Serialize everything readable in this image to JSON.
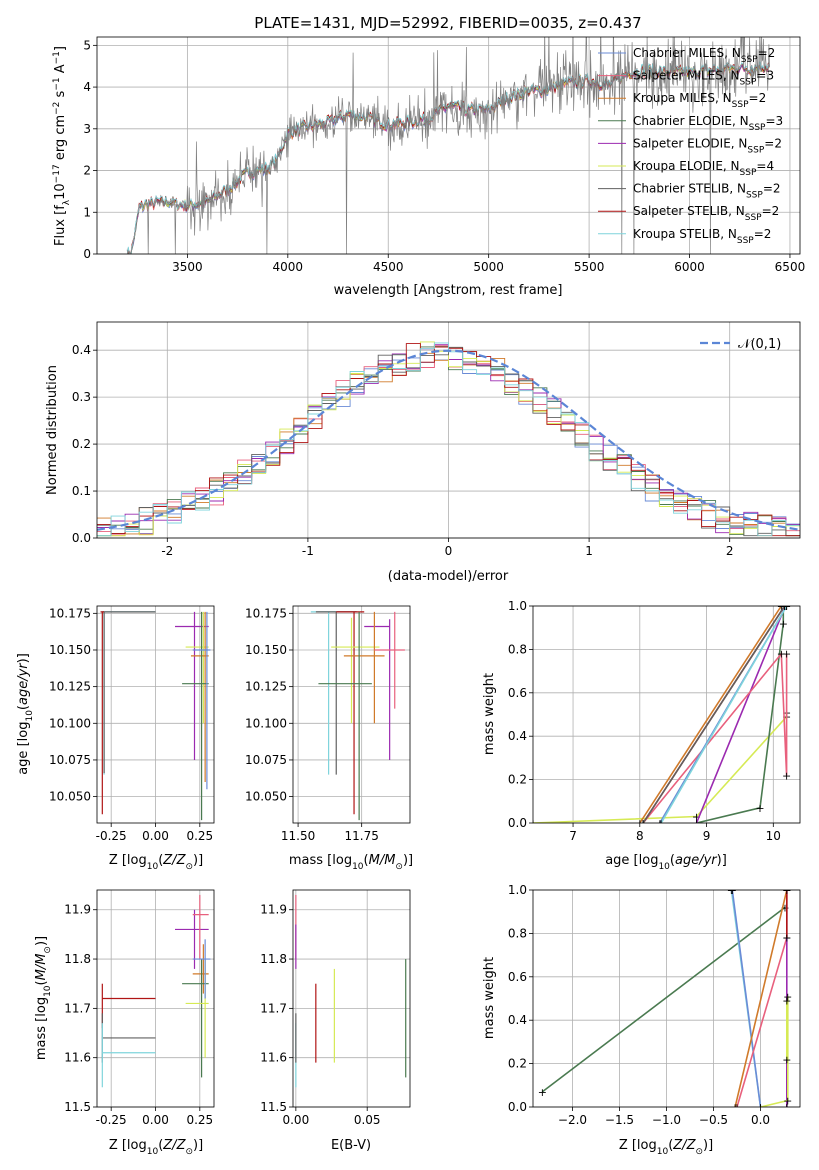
{
  "title": "PLATE=1431, MJD=52992, FIBERID=0035, z=0.437",
  "colors": {
    "chab_miles": "#6a8bd6",
    "salp_miles": "#e8607d",
    "krou_miles": "#d07a2a",
    "chab_elodie": "#4a7a50",
    "salp_elodie": "#9b2ab0",
    "krou_elodie": "#d6ea55",
    "chab_stelib": "#606060",
    "salp_stelib": "#b01515",
    "krou_stelib": "#7fd4dc",
    "grey": "#808080",
    "normal": "#5b86d6"
  },
  "chart_data": [
    {
      "id": "spectrum",
      "type": "line",
      "xlabel": "wavelength [Angstrom, rest frame]",
      "ylabel": "Flux [f$_\\lambda$10$^{-17}$ erg cm$^{-2}$ s$^{-1}$ A$^{-1}$]",
      "xlim": [
        3050,
        6550
      ],
      "ylim": [
        0,
        5.2
      ],
      "xticks": [
        3500,
        4000,
        4500,
        5000,
        5500,
        6000,
        6500
      ],
      "yticks": [
        0,
        1,
        2,
        3,
        4,
        5
      ],
      "legend_position": "top-right",
      "legend": [
        {
          "label": "Chabrier MILES, N",
          "sub": "SSP",
          "suffix": "=2",
          "color_key": "chab_miles"
        },
        {
          "label": "Salpeter MILES, N",
          "sub": "SSP",
          "suffix": "=3",
          "color_key": "salp_miles"
        },
        {
          "label": "Kroupa MILES, N",
          "sub": "SSP",
          "suffix": "=2",
          "color_key": "krou_miles"
        },
        {
          "label": "Chabrier ELODIE, N",
          "sub": "SSP",
          "suffix": "=3",
          "color_key": "chab_elodie"
        },
        {
          "label": "Salpeter ELODIE, N",
          "sub": "SSP",
          "suffix": "=2",
          "color_key": "salp_elodie"
        },
        {
          "label": "Kroupa ELODIE, N",
          "sub": "SSP",
          "suffix": "=4",
          "color_key": "krou_elodie"
        },
        {
          "label": "Chabrier STELIB, N",
          "sub": "SSP",
          "suffix": "=2",
          "color_key": "chab_stelib"
        },
        {
          "label": "Salpeter STELIB, N",
          "sub": "SSP",
          "suffix": "=2",
          "color_key": "salp_stelib"
        },
        {
          "label": "Kroupa STELIB, N",
          "sub": "SSP",
          "suffix": "=2",
          "color_key": "krou_stelib"
        }
      ],
      "continuum": {
        "x": [
          3220,
          3260,
          3300,
          3400,
          3500,
          3600,
          3700,
          3800,
          3900,
          3950,
          4000,
          4100,
          4200,
          4300,
          4400,
          4500,
          4600,
          4700,
          4800,
          4900,
          5000,
          5100,
          5200,
          5300,
          5400,
          5500,
          5600,
          5700,
          5800,
          5900,
          6000,
          6100,
          6200,
          6300,
          6400
        ],
        "y": [
          0,
          1.1,
          1.2,
          1.25,
          1.15,
          1.25,
          1.55,
          1.95,
          2.05,
          2.3,
          2.9,
          3.05,
          3.15,
          3.35,
          3.25,
          3.1,
          3.15,
          3.25,
          3.55,
          3.45,
          3.45,
          3.75,
          3.9,
          3.95,
          4.1,
          4.15,
          4.05,
          4.35,
          4.4,
          4.35,
          4.35,
          4.4,
          4.45,
          4.45,
          4.5
        ]
      }
    },
    {
      "id": "residuals",
      "type": "bar",
      "xlabel": "(data-model)/error",
      "ylabel": "Normed distribution",
      "xlim": [
        -2.5,
        2.5
      ],
      "ylim": [
        0,
        0.46
      ],
      "xticks": [
        -2,
        -1,
        0,
        1,
        2
      ],
      "yticks": [
        0.0,
        0.1,
        0.2,
        0.3,
        0.4
      ],
      "legend_position": "top-right",
      "normal_label": "N(0,1)",
      "bin_width": 0.1
    },
    {
      "id": "age_vs_Z",
      "type": "scatter",
      "xlabel": "Z [log",
      "xlabel_sub": "10",
      "xlabel_rest": "(Z/Z",
      "ylabel": "age  [log10(age/yr)]",
      "xlim": [
        -0.33,
        0.33
      ],
      "ylim": [
        10.032,
        10.18
      ],
      "xticks": [
        -0.25,
        0.0,
        0.25
      ],
      "yticks": [
        10.05,
        10.075,
        10.1,
        10.125,
        10.15,
        10.175
      ],
      "errorbars": [
        {
          "key": "krou_stelib",
          "x": -0.29,
          "y": 10.176,
          "xlo": -0.31,
          "xhi": 0.0,
          "ylo": 10.065,
          "yhi": 10.176
        },
        {
          "key": "chab_stelib",
          "x": -0.29,
          "y": 10.176,
          "xlo": -0.3,
          "xhi": 0.0,
          "ylo": 10.066,
          "yhi": 10.176
        },
        {
          "key": "salp_stelib",
          "x": -0.3,
          "y": 10.176,
          "xlo": -0.31,
          "xhi": -0.29,
          "ylo": 10.038,
          "yhi": 10.176
        },
        {
          "key": "salp_elodie",
          "x": 0.22,
          "y": 10.166,
          "xlo": 0.11,
          "xhi": 0.3,
          "ylo": 10.075,
          "yhi": 10.176
        },
        {
          "key": "krou_elodie",
          "x": 0.27,
          "y": 10.152,
          "xlo": 0.17,
          "xhi": 0.3,
          "ylo": 10.1,
          "yhi": 10.176
        },
        {
          "key": "krou_miles",
          "x": 0.28,
          "y": 10.146,
          "xlo": 0.2,
          "xhi": 0.3,
          "ylo": 10.06,
          "yhi": 10.176
        },
        {
          "key": "chab_elodie",
          "x": 0.26,
          "y": 10.127,
          "xlo": 0.15,
          "xhi": 0.3,
          "ylo": 10.034,
          "yhi": 10.176
        },
        {
          "key": "chab_miles",
          "x": 0.29,
          "y": 10.15,
          "xlo": 0.21,
          "xhi": 0.31,
          "ylo": 10.055,
          "yhi": 10.176
        }
      ]
    },
    {
      "id": "age_vs_mass",
      "type": "scatter",
      "xlabel": "mass [log10(M/M)]",
      "xlim": [
        11.48,
        11.94
      ],
      "ylim": [
        10.032,
        10.18
      ],
      "xticks": [
        11.5,
        11.75
      ],
      "yticks": [
        10.05,
        10.075,
        10.1,
        10.125,
        10.15,
        10.175
      ],
      "errorbars": [
        {
          "key": "krou_stelib",
          "x": 11.62,
          "y": 10.176,
          "xlo": 11.55,
          "xhi": 11.73,
          "ylo": 10.065,
          "yhi": 10.176
        },
        {
          "key": "chab_stelib",
          "x": 11.65,
          "y": 10.176,
          "xlo": 11.57,
          "xhi": 11.73,
          "ylo": 10.065,
          "yhi": 10.176
        },
        {
          "key": "salp_stelib",
          "x": 11.72,
          "y": 10.176,
          "xlo": 11.65,
          "xhi": 11.76,
          "ylo": 10.038,
          "yhi": 10.176
        },
        {
          "key": "salp_elodie",
          "x": 11.86,
          "y": 10.166,
          "xlo": 11.76,
          "xhi": 11.86,
          "ylo": 10.075,
          "yhi": 10.171
        },
        {
          "key": "krou_elodie",
          "x": 11.71,
          "y": 10.152,
          "xlo": 11.63,
          "xhi": 11.82,
          "ylo": 10.1,
          "yhi": 10.172
        },
        {
          "key": "krou_miles",
          "x": 11.8,
          "y": 10.146,
          "xlo": 11.68,
          "xhi": 11.84,
          "ylo": 10.1,
          "yhi": 10.176
        },
        {
          "key": "chab_elodie",
          "x": 11.74,
          "y": 10.127,
          "xlo": 11.58,
          "xhi": 11.79,
          "ylo": 10.034,
          "yhi": 10.176
        },
        {
          "key": "salp_miles",
          "x": 11.88,
          "y": 10.15,
          "xlo": 11.8,
          "xhi": 11.92,
          "ylo": 10.11,
          "yhi": 10.176
        }
      ]
    },
    {
      "id": "weight_vs_age",
      "type": "line",
      "xlabel": "age  [log10(age/yr)]",
      "ylabel": "mass weight",
      "xlim": [
        6.4,
        10.4
      ],
      "ylim": [
        0,
        1.0
      ],
      "xticks": [
        7,
        8,
        9,
        10
      ],
      "yticks": [
        0.0,
        0.2,
        0.4,
        0.6,
        0.8,
        1.0
      ],
      "series": [
        {
          "key": "krou_elodie",
          "x": [
            6.4,
            8.85,
            10.2,
            10.2
          ],
          "y": [
            0.0,
            0.03,
            0.49,
            0.51
          ]
        },
        {
          "key": "chab_elodie",
          "x": [
            8.85,
            9.8,
            10.15,
            10.15
          ],
          "y": [
            0.0,
            0.07,
            0.92,
            1.0
          ]
        },
        {
          "key": "salp_elodie",
          "x": [
            8.85,
            10.18
          ],
          "y": [
            0.0,
            1.0
          ]
        },
        {
          "key": "salp_miles",
          "x": [
            8.05,
            10.12,
            10.2,
            10.2
          ],
          "y": [
            0.0,
            0.78,
            0.22,
            0.78
          ]
        },
        {
          "key": "chab_miles",
          "x": [
            8.3,
            10.2
          ],
          "y": [
            0.0,
            1.0
          ]
        },
        {
          "key": "krou_stelib",
          "x": [
            8.32,
            10.2
          ],
          "y": [
            0.0,
            1.0
          ]
        },
        {
          "key": "krou_miles",
          "x": [
            8.0,
            10.12
          ],
          "y": [
            0.0,
            1.0
          ]
        },
        {
          "key": "salp_stelib",
          "x": [
            8.05,
            10.17
          ],
          "y": [
            0.0,
            1.0
          ]
        },
        {
          "key": "chab_stelib",
          "x": [
            8.05,
            10.17
          ],
          "y": [
            0.0,
            1.0
          ]
        }
      ]
    },
    {
      "id": "mass_vs_Z",
      "type": "scatter",
      "xlabel": "Z [log10(Z/Z)]",
      "ylabel": "mass [log10(M/M)]",
      "xlim": [
        -0.33,
        0.33
      ],
      "ylim": [
        11.5,
        11.94
      ],
      "xticks": [
        -0.25,
        0.0,
        0.25
      ],
      "yticks": [
        11.5,
        11.6,
        11.7,
        11.8,
        11.9
      ],
      "errorbars": [
        {
          "key": "salp_stelib",
          "x": -0.3,
          "y": 11.72,
          "xlo": -0.3,
          "xhi": 0.0,
          "ylo": 11.66,
          "yhi": 11.75
        },
        {
          "key": "chab_stelib",
          "x": -0.3,
          "y": 11.64,
          "xlo": -0.3,
          "xhi": 0.0,
          "ylo": 11.59,
          "yhi": 11.69
        },
        {
          "key": "krou_stelib",
          "x": -0.3,
          "y": 11.61,
          "xlo": -0.3,
          "xhi": 0.0,
          "ylo": 11.54,
          "yhi": 11.67
        },
        {
          "key": "salp_elodie",
          "x": 0.22,
          "y": 11.86,
          "xlo": 0.11,
          "xhi": 0.3,
          "ylo": 11.78,
          "yhi": 11.9
        },
        {
          "key": "salp_miles",
          "x": 0.25,
          "y": 11.89,
          "xlo": 0.21,
          "xhi": 0.3,
          "ylo": 11.8,
          "yhi": 11.93
        },
        {
          "key": "krou_miles",
          "x": 0.27,
          "y": 11.77,
          "xlo": 0.21,
          "xhi": 0.3,
          "ylo": 11.73,
          "yhi": 11.83
        },
        {
          "key": "chab_elodie",
          "x": 0.26,
          "y": 11.75,
          "xlo": 0.15,
          "xhi": 0.3,
          "ylo": 11.56,
          "yhi": 11.8
        },
        {
          "key": "krou_elodie",
          "x": 0.28,
          "y": 11.71,
          "xlo": 0.17,
          "xhi": 0.3,
          "ylo": 11.6,
          "yhi": 11.8
        },
        {
          "key": "chab_miles",
          "x": 0.28,
          "y": 11.8,
          "xlo": 0.21,
          "xhi": 0.31,
          "ylo": 11.72,
          "yhi": 11.84
        }
      ]
    },
    {
      "id": "mass_vs_ebv",
      "type": "scatter",
      "xlabel": "E(B-V)",
      "xlim": [
        -0.002,
        0.08
      ],
      "ylim": [
        11.5,
        11.94
      ],
      "xticks": [
        0.0,
        0.05
      ],
      "yticks": [
        11.5,
        11.6,
        11.7,
        11.8,
        11.9
      ],
      "errorbars": [
        {
          "key": "salp_miles",
          "x": 0.0,
          "y": 11.89,
          "xlo": 0.0,
          "xhi": 0.0,
          "ylo": 11.8,
          "yhi": 11.93
        },
        {
          "key": "salp_elodie",
          "x": 0.0,
          "y": 11.86,
          "xlo": 0.0,
          "xhi": 0.0,
          "ylo": 11.78,
          "yhi": 11.87
        },
        {
          "key": "krou_stelib",
          "x": 0.0,
          "y": 11.61,
          "xlo": 0.0,
          "xhi": 0.0,
          "ylo": 11.54,
          "yhi": 11.67
        },
        {
          "key": "chab_stelib",
          "x": 0.0,
          "y": 11.64,
          "xlo": 0.0,
          "xhi": 0.0,
          "ylo": 11.59,
          "yhi": 11.69
        },
        {
          "key": "salp_stelib",
          "x": 0.014,
          "y": 11.7,
          "xlo": 0.014,
          "xhi": 0.014,
          "ylo": 11.59,
          "yhi": 11.75
        },
        {
          "key": "krou_elodie",
          "x": 0.027,
          "y": 11.71,
          "xlo": 0.027,
          "xhi": 0.027,
          "ylo": 11.59,
          "yhi": 11.78
        },
        {
          "key": "chab_elodie",
          "x": 0.077,
          "y": 11.75,
          "xlo": 0.077,
          "xhi": 0.077,
          "ylo": 11.56,
          "yhi": 11.8
        }
      ]
    },
    {
      "id": "weight_vs_Z",
      "type": "line",
      "xlabel": "Z [log10(Z/Z)]",
      "ylabel": "mass weight",
      "xlim": [
        -2.42,
        0.42
      ],
      "ylim": [
        0,
        1.0
      ],
      "xticks": [
        -2.0,
        -1.5,
        -1.0,
        -0.5,
        0.0
      ],
      "yticks": [
        0.0,
        0.2,
        0.4,
        0.6,
        0.8,
        1.0
      ],
      "series": [
        {
          "key": "chab_elodie",
          "x": [
            -2.32,
            0.26
          ],
          "y": [
            0.07,
            0.92
          ]
        },
        {
          "key": "krou_stelib",
          "x": [
            -0.31,
            0.0
          ],
          "y": [
            1.0,
            0.0
          ]
        },
        {
          "key": "chab_miles",
          "x": [
            -0.3,
            0.0
          ],
          "y": [
            1.0,
            0.0
          ]
        },
        {
          "key": "krou_miles",
          "x": [
            -0.27,
            0.28
          ],
          "y": [
            0.0,
            1.0
          ]
        },
        {
          "key": "salp_miles",
          "x": [
            -0.25,
            0.28
          ],
          "y": [
            0.0,
            0.78
          ]
        },
        {
          "key": "salp_elodie",
          "x": [
            0.28,
            0.28,
            0.28
          ],
          "y": [
            0.0,
            1.0,
            0.0
          ]
        },
        {
          "key": "krou_elodie",
          "x": [
            0.0,
            0.29,
            0.29
          ],
          "y": [
            0.0,
            0.03,
            0.51
          ]
        },
        {
          "key": "salp_stelib",
          "x": [
            0.28,
            0.28
          ],
          "y": [
            0.78,
            1.0
          ]
        },
        {
          "key": "krou_elodie",
          "x": [
            0.28,
            0.28
          ],
          "y": [
            0.22,
            0.49
          ]
        }
      ]
    }
  ]
}
